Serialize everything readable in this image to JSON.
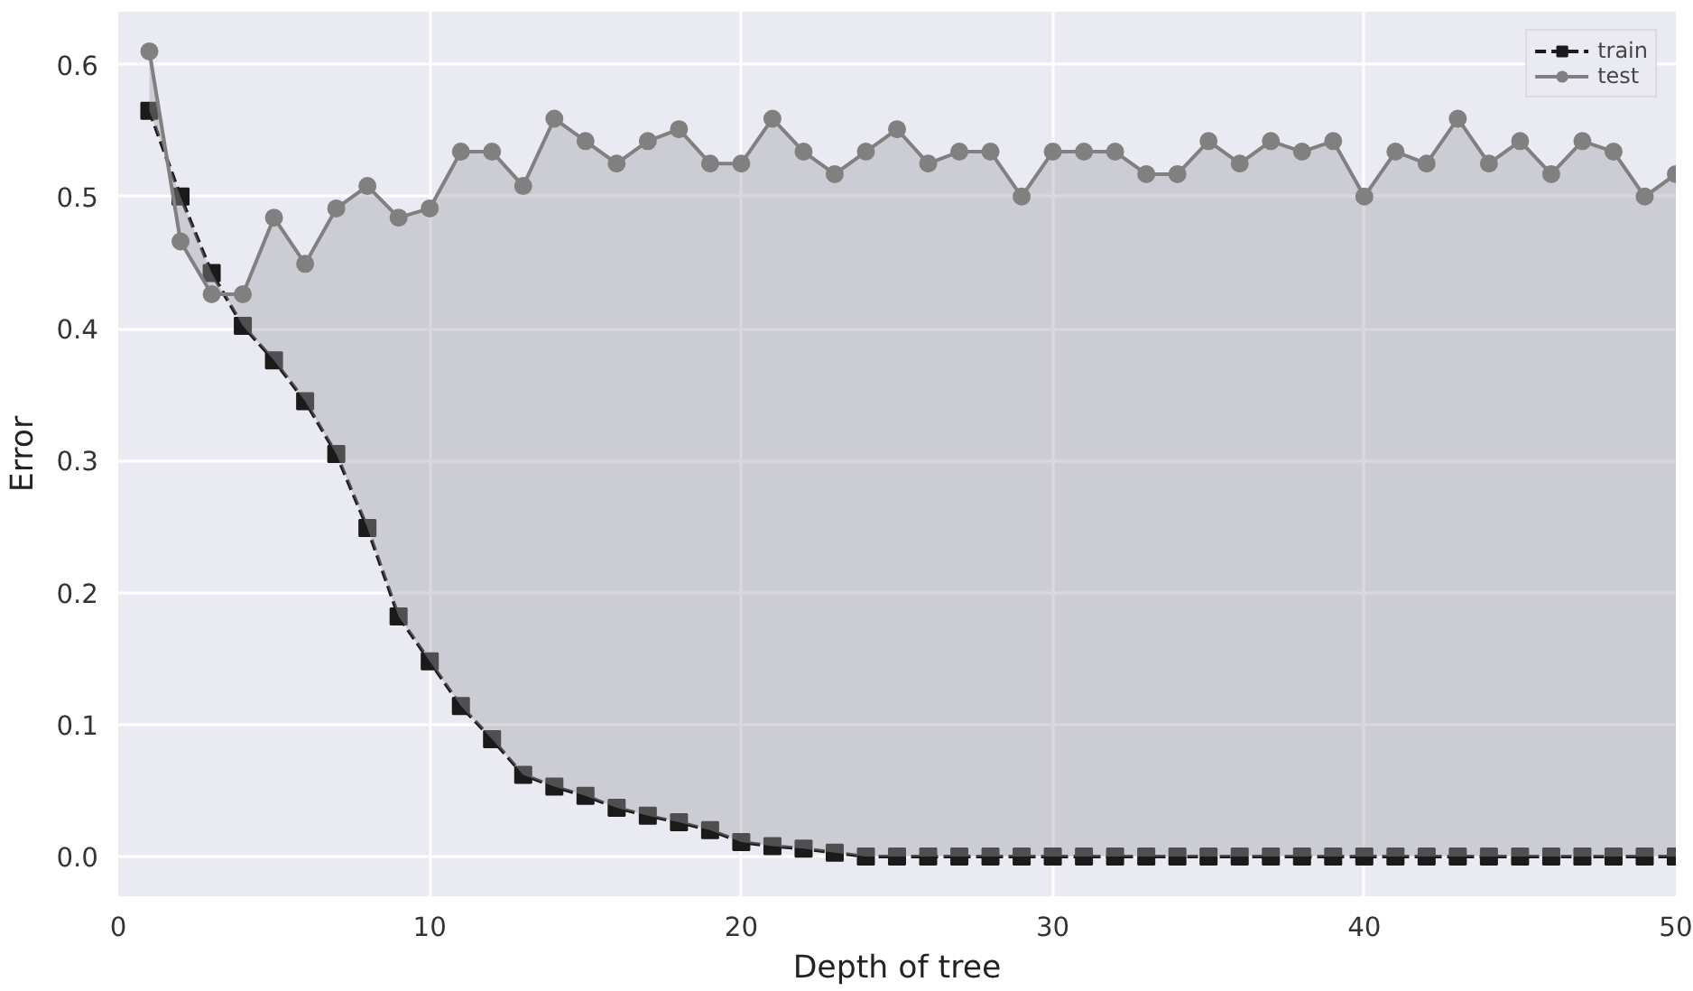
{
  "chart_data": {
    "type": "line",
    "xlabel": "Depth of tree",
    "ylabel": "Error",
    "x": [
      1,
      2,
      3,
      4,
      5,
      6,
      7,
      8,
      9,
      10,
      11,
      12,
      13,
      14,
      15,
      16,
      17,
      18,
      19,
      20,
      21,
      22,
      23,
      24,
      25,
      26,
      27,
      28,
      29,
      30,
      31,
      32,
      33,
      34,
      35,
      36,
      37,
      38,
      39,
      40,
      41,
      42,
      43,
      44,
      45,
      46,
      47,
      48,
      49,
      50
    ],
    "series": [
      {
        "name": "train",
        "color": "#1a1a1a",
        "marker": "square",
        "line_style": "dashed",
        "values": [
          0.565,
          0.5,
          0.442,
          0.402,
          0.376,
          0.345,
          0.305,
          0.249,
          0.182,
          0.148,
          0.114,
          0.089,
          0.062,
          0.053,
          0.046,
          0.037,
          0.031,
          0.026,
          0.02,
          0.011,
          0.008,
          0.006,
          0.003,
          0,
          0,
          0,
          0,
          0,
          0,
          0,
          0,
          0,
          0,
          0,
          0,
          0,
          0,
          0,
          0,
          0,
          0,
          0,
          0,
          0,
          0,
          0,
          0,
          0,
          0,
          0
        ]
      },
      {
        "name": "test",
        "color": "#808080",
        "marker": "circle",
        "line_style": "solid",
        "values": [
          0.61,
          0.466,
          0.426,
          0.426,
          0.484,
          0.449,
          0.491,
          0.508,
          0.484,
          0.491,
          0.534,
          0.534,
          0.508,
          0.559,
          0.542,
          0.525,
          0.542,
          0.551,
          0.525,
          0.525,
          0.559,
          0.534,
          0.517,
          0.534,
          0.551,
          0.525,
          0.534,
          0.534,
          0.5,
          0.534,
          0.534,
          0.534,
          0.517,
          0.517,
          0.542,
          0.525,
          0.542,
          0.534,
          0.542,
          0.5,
          0.534,
          0.525,
          0.559,
          0.525,
          0.542,
          0.517,
          0.542,
          0.534,
          0.5,
          0.517
        ],
        "lower": [
          0.565,
          0.5,
          0.442,
          0.402,
          0.376,
          0.345,
          0.305,
          0.249,
          0.182,
          0.148,
          0.114,
          0.089,
          0.062,
          0.053,
          0.046,
          0.037,
          0.031,
          0.026,
          0.02,
          0.011,
          0.008,
          0.006,
          0.003,
          0,
          0,
          0,
          0,
          0,
          0,
          0,
          0,
          0,
          0,
          0,
          0,
          0,
          0,
          0,
          0,
          0,
          0,
          0,
          0,
          0,
          0,
          0,
          0,
          0,
          0,
          0
        ],
        "upper": [
          0.61,
          0.466,
          0.426,
          0.426,
          0.484,
          0.449,
          0.491,
          0.508,
          0.484,
          0.491,
          0.534,
          0.534,
          0.508,
          0.559,
          0.542,
          0.525,
          0.542,
          0.551,
          0.525,
          0.525,
          0.559,
          0.534,
          0.517,
          0.534,
          0.551,
          0.525,
          0.534,
          0.534,
          0.5,
          0.534,
          0.534,
          0.534,
          0.517,
          0.517,
          0.542,
          0.525,
          0.542,
          0.534,
          0.542,
          0.5,
          0.534,
          0.525,
          0.559,
          0.525,
          0.542,
          0.517,
          0.542,
          0.534,
          0.5,
          0.517
        ]
      }
    ],
    "xlim": [
      0,
      50
    ],
    "xticks": [
      0,
      10,
      20,
      30,
      40,
      50
    ],
    "ylim": [
      -0.03,
      0.64
    ],
    "yticks": [
      {
        "value": 0,
        "label": "0.0"
      },
      0.1,
      0.2,
      0.3,
      0.4,
      0.5,
      0.6
    ],
    "grid": true,
    "legend": "top right"
  }
}
